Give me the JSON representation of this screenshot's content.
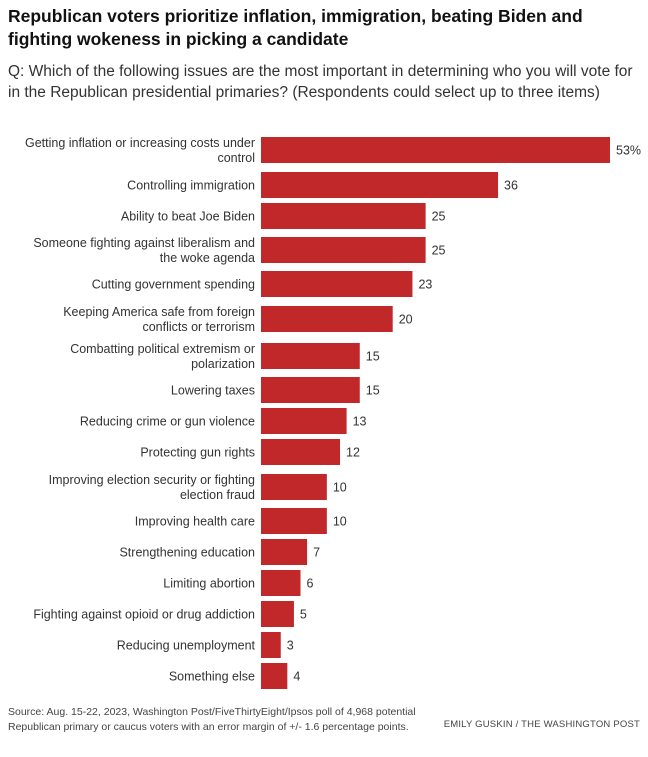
{
  "title": "Republican voters prioritize inflation, immigration, beating Biden and fighting wokeness in picking a candidate",
  "subtitle": "Q: Which of the following issues are the most important in determining who you will vote for in the Republican presidential primaries? (Respondents could select up to three items)",
  "source": "Source: Aug. 15-22, 2023, Washington Post/FiveThirtyEight/Ipsos poll of 4,968 potential Republican primary or caucus voters with an error margin of +/- 1.6 percentage points.",
  "credit": "EMILY GUSKIN / THE WASHINGTON POST",
  "bar_color": "#c0282a",
  "chart_data": {
    "type": "bar",
    "orientation": "horizontal",
    "title": "Republican voters prioritize inflation, immigration, beating Biden and fighting wokeness in picking a candidate",
    "xlim": [
      0,
      53
    ],
    "grid": false,
    "categories": [
      [
        "Getting inflation or increasing costs under",
        "control"
      ],
      [
        "Controlling immigration"
      ],
      [
        "Ability to beat Joe Biden"
      ],
      [
        "Someone fighting against liberalism and",
        "the woke agenda"
      ],
      [
        "Cutting government spending"
      ],
      [
        "Keeping America safe from foreign",
        "conflicts or terrorism"
      ],
      [
        "Combatting political extremism or",
        "polarization"
      ],
      [
        "Lowering taxes"
      ],
      [
        "Reducing crime or gun violence"
      ],
      [
        "Protecting gun rights"
      ],
      [
        "Improving election security or fighting",
        "election fraud"
      ],
      [
        "Improving health care"
      ],
      [
        "Strengthening education"
      ],
      [
        "Limiting abortion"
      ],
      [
        "Fighting against opioid or drug addiction"
      ],
      [
        "Reducing unemployment"
      ],
      [
        "Something else"
      ]
    ],
    "values": [
      53,
      36,
      25,
      25,
      23,
      20,
      15,
      15,
      13,
      12,
      10,
      10,
      7,
      6,
      5,
      3,
      4
    ],
    "value_labels": [
      "53%",
      "36",
      "25",
      "25",
      "23",
      "20",
      "15",
      "15",
      "13",
      "12",
      "10",
      "10",
      "7",
      "6",
      "5",
      "3",
      "4"
    ]
  }
}
